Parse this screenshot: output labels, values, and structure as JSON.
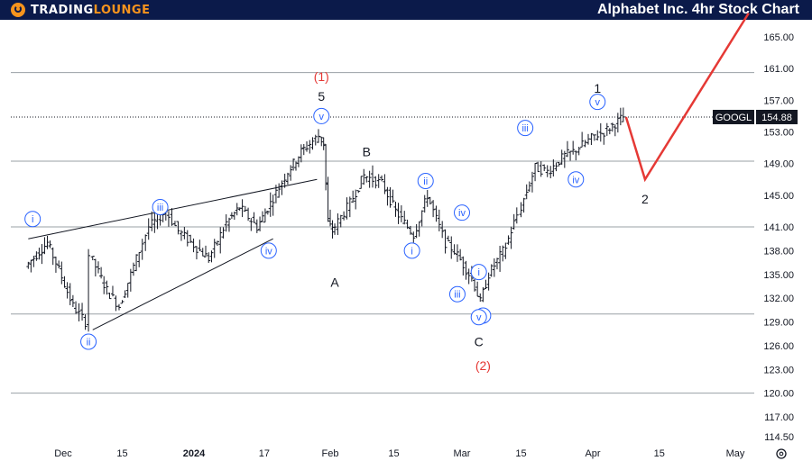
{
  "header": {
    "logo_text_1": "TRADING",
    "logo_text_2": "LOUNGE",
    "title": "Alphabet Inc. 4hr Stock Chart"
  },
  "colors": {
    "header_bg": "#0b1a4a",
    "brand_orange": "#f7941d",
    "circle_label": "#2962ff",
    "projection": "#e53935"
  },
  "chart_data": {
    "type": "ohlc",
    "symbol": "GOOGL",
    "last_price": "154.88",
    "ylim": [
      114.5,
      167.5
    ],
    "y_ticks": [
      "165.00",
      "161.00",
      "157.00",
      "153.00",
      "149.00",
      "145.00",
      "141.00",
      "138.00",
      "135.00",
      "132.00",
      "129.00",
      "126.00",
      "123.00",
      "120.00",
      "117.00",
      "114.50"
    ],
    "x_ticks": [
      "Dec",
      "15",
      "2024",
      "17",
      "Feb",
      "15",
      "Mar",
      "15",
      "Apr",
      "15",
      "May"
    ],
    "grid": false,
    "horizontal_levels": [
      160.5,
      149.3,
      141.0,
      130.0,
      120.0
    ],
    "series": [
      {
        "date": "Nov 23",
        "close": 136.0
      },
      {
        "date": "Nov 28",
        "close": 139.0
      },
      {
        "date": "Nov 30",
        "close": 136.5
      },
      {
        "date": "Dec 4",
        "close": 131.0
      },
      {
        "date": "Dec 7",
        "close": 129.0
      },
      {
        "date": "Dec 8",
        "close": 137.5
      },
      {
        "date": "Dec 12",
        "close": 133.0
      },
      {
        "date": "Dec 15",
        "close": 131.0
      },
      {
        "date": "Dec 19",
        "close": 137.0
      },
      {
        "date": "Dec 22",
        "close": 141.0
      },
      {
        "date": "Dec 26",
        "close": 143.0
      },
      {
        "date": "Dec 29",
        "close": 140.5
      },
      {
        "date": "Jan 3",
        "close": 138.0
      },
      {
        "date": "Jan 5",
        "close": 137.0
      },
      {
        "date": "Jan 9",
        "close": 141.5
      },
      {
        "date": "Jan 12",
        "close": 143.5
      },
      {
        "date": "Jan 16",
        "close": 141.0
      },
      {
        "date": "Jan 19",
        "close": 144.0
      },
      {
        "date": "Jan 23",
        "close": 148.0
      },
      {
        "date": "Jan 26",
        "close": 150.5
      },
      {
        "date": "Jan 30",
        "close": 152.5
      },
      {
        "date": "Jan 31",
        "close": 151.5
      },
      {
        "date": "Feb 1",
        "close": 141.5
      },
      {
        "date": "Feb 2",
        "close": 140.5
      },
      {
        "date": "Feb 6",
        "close": 144.0
      },
      {
        "date": "Feb 9",
        "close": 147.5
      },
      {
        "date": "Feb 13",
        "close": 146.5
      },
      {
        "date": "Feb 16",
        "close": 143.0
      },
      {
        "date": "Feb 20",
        "close": 140.0
      },
      {
        "date": "Feb 23",
        "close": 145.0
      },
      {
        "date": "Feb 27",
        "close": 139.0
      },
      {
        "date": "Feb 29",
        "close": 138.0
      },
      {
        "date": "Mar 4",
        "close": 134.5
      },
      {
        "date": "Mar 6",
        "close": 131.5
      },
      {
        "date": "Mar 8",
        "close": 135.0
      },
      {
        "date": "Mar 12",
        "close": 138.5
      },
      {
        "date": "Mar 14",
        "close": 141.5
      },
      {
        "date": "Mar 15",
        "close": 142.5
      },
      {
        "date": "Mar 19",
        "close": 148.5
      },
      {
        "date": "Mar 22",
        "close": 148.0
      },
      {
        "date": "Mar 26",
        "close": 150.0
      },
      {
        "date": "Mar 28",
        "close": 150.5
      },
      {
        "date": "Apr 2",
        "close": 152.5
      },
      {
        "date": "Apr 4",
        "close": 153.0
      },
      {
        "date": "Apr 8",
        "close": 154.88
      }
    ],
    "projection_path": [
      {
        "date": "Apr 8",
        "price": 154.88
      },
      {
        "date": "Apr 12",
        "price": 147.0
      },
      {
        "date": "May 4",
        "price": 168.0
      }
    ],
    "wave_labels": [
      {
        "text": "(1)",
        "style": "red",
        "date": "Jan 30",
        "price": 160.0,
        "anchor": "above"
      },
      {
        "text": "5",
        "style": "plain",
        "date": "Jan 30",
        "price": 157.5,
        "anchor": "above"
      },
      {
        "text": "v",
        "style": "circle",
        "date": "Jan 30",
        "price": 155.0
      },
      {
        "text": "i",
        "style": "circle",
        "date": "Nov 24",
        "price": 142.0
      },
      {
        "text": "ii",
        "style": "circle",
        "date": "Dec 7",
        "price": 126.5
      },
      {
        "text": "iii",
        "style": "circle",
        "date": "Dec 24",
        "price": 143.5
      },
      {
        "text": "iv",
        "style": "circle",
        "date": "Jan 18",
        "price": 138.0
      },
      {
        "text": "A",
        "style": "plain",
        "date": "Feb 2",
        "price": 134.0
      },
      {
        "text": "B",
        "style": "plain",
        "date": "Feb 9",
        "price": 150.5
      },
      {
        "text": "i",
        "style": "circle",
        "date": "Feb 19",
        "price": 138.0
      },
      {
        "text": "ii",
        "style": "circle",
        "date": "Feb 22",
        "price": 146.8
      },
      {
        "text": "iii",
        "style": "circle",
        "date": "Feb 29",
        "price": 132.5
      },
      {
        "text": "iv",
        "style": "circle",
        "date": "Mar 1",
        "price": 142.8
      },
      {
        "text": "i",
        "style": "circle",
        "date": "Mar 5",
        "price": 135.3
      },
      {
        "text": "ii",
        "style": "circle",
        "date": "Mar 6",
        "price": 129.8
      },
      {
        "text": "v",
        "style": "circle",
        "date": "Mar 5",
        "price": 129.6
      },
      {
        "text": "C",
        "style": "plain",
        "date": "Mar 5",
        "price": 126.5
      },
      {
        "text": "(2)",
        "style": "red",
        "date": "Mar 6",
        "price": 123.5
      },
      {
        "text": "iii",
        "style": "circle",
        "date": "Mar 16",
        "price": 153.5
      },
      {
        "text": "iv",
        "style": "circle",
        "date": "Mar 28",
        "price": 147.0
      },
      {
        "text": "v",
        "style": "circle",
        "date": "Apr 2",
        "price": 156.8
      },
      {
        "text": "1",
        "style": "plain",
        "date": "Apr 2",
        "price": 158.5
      },
      {
        "text": "2",
        "style": "plain",
        "date": "Apr 12",
        "price": 144.5
      }
    ],
    "trendlines": [
      {
        "from": {
          "date": "Nov 23",
          "price": 139.5
        },
        "to": {
          "date": "Jan 29",
          "price": 147.0
        }
      },
      {
        "from": {
          "date": "Dec 8",
          "price": 128.0
        },
        "to": {
          "date": "Jan 19",
          "price": 139.5
        }
      }
    ]
  }
}
